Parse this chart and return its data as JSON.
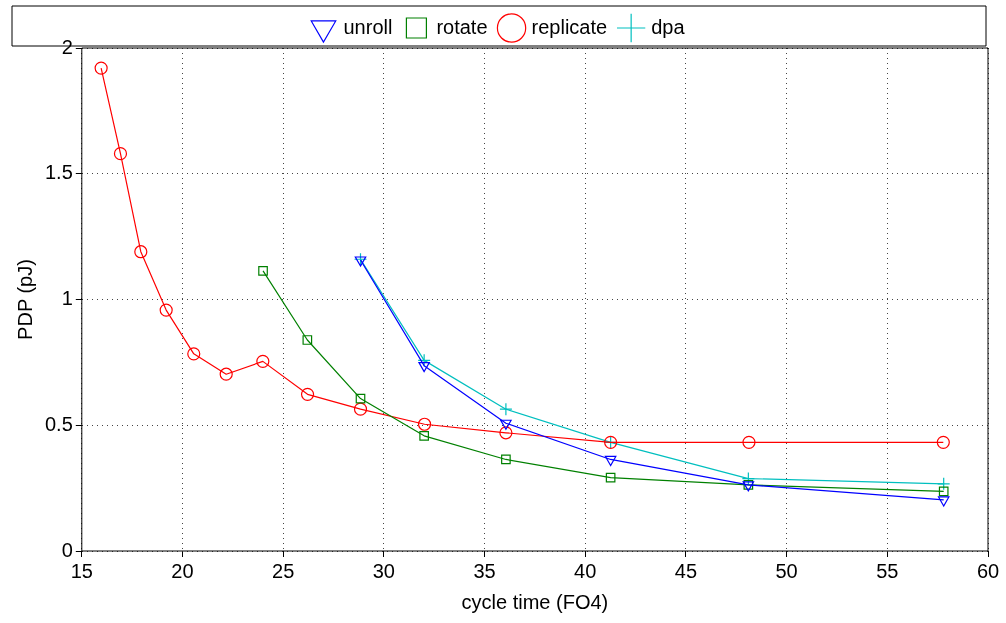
{
  "chart_data": {
    "type": "line",
    "xlabel": "cycle time (FO4)",
    "ylabel": "PDP (pJ)",
    "xlim": [
      15,
      60
    ],
    "xticks": [
      15,
      20,
      25,
      30,
      35,
      40,
      45,
      50,
      55,
      60
    ],
    "ylim": [
      0,
      2
    ],
    "yticks": [
      0,
      0.5,
      1,
      1.5,
      2
    ],
    "grid": true,
    "legend": "top",
    "line_style": "solid",
    "series": [
      {
        "name": "unroll",
        "color": "#0000ff",
        "marker": "triangle",
        "x": [
          28.84,
          32.0,
          36.06,
          41.26,
          48.1,
          57.8
        ],
        "values": [
          1.157,
          0.737,
          0.508,
          0.364,
          0.263,
          0.203
        ]
      },
      {
        "name": "rotate",
        "color": "#008000",
        "marker": "square",
        "x": [
          24.0,
          26.2,
          28.84,
          32.0,
          36.06,
          41.26,
          48.1,
          57.8
        ],
        "values": [
          1.114,
          0.839,
          0.606,
          0.458,
          0.364,
          0.292,
          0.263,
          0.237
        ]
      },
      {
        "name": "replicate",
        "color": "#ff0000",
        "marker": "circle",
        "x": [
          15.96,
          16.92,
          17.93,
          19.19,
          20.56,
          22.17,
          23.99,
          26.21,
          28.84,
          32.02,
          36.06,
          41.26,
          48.13,
          57.78
        ],
        "values": [
          1.92,
          1.58,
          1.19,
          0.958,
          0.784,
          0.703,
          0.754,
          0.623,
          0.564,
          0.504,
          0.47,
          0.432,
          0.432,
          0.432
        ]
      },
      {
        "name": "dpa",
        "color": "#00bfbf",
        "marker": "cross",
        "x": [
          28.84,
          32.0,
          36.06,
          41.26,
          48.1,
          57.8
        ],
        "values": [
          1.16,
          0.758,
          0.564,
          0.432,
          0.288,
          0.267
        ]
      }
    ]
  }
}
